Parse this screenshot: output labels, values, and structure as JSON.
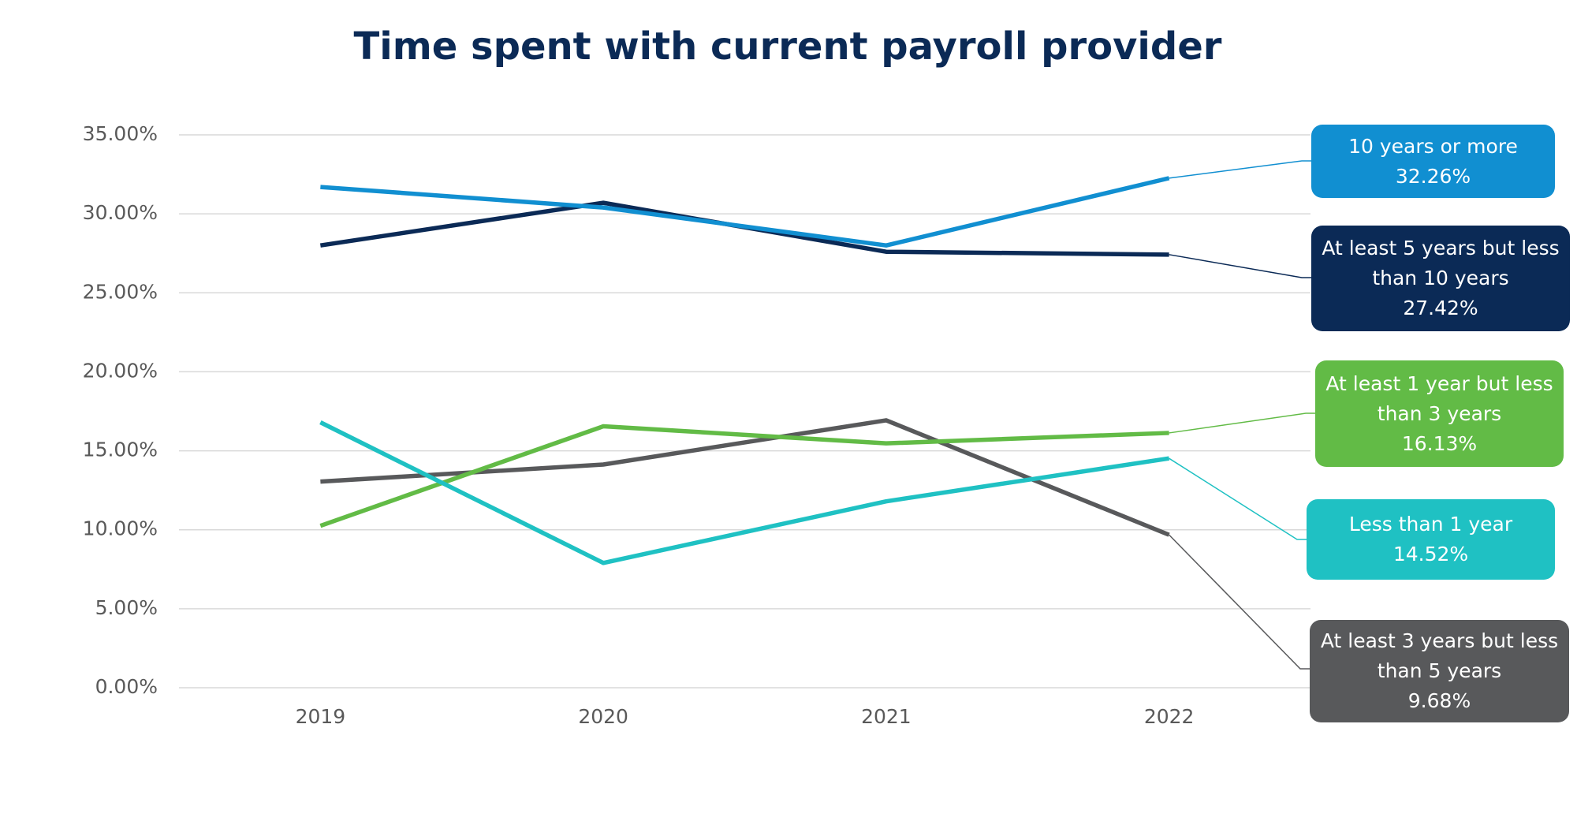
{
  "chart_data": {
    "type": "line",
    "title": "Time spent with current payroll provider",
    "categories": [
      "2019",
      "2020",
      "2021",
      "2022"
    ],
    "ylim": [
      0,
      35
    ],
    "yticks": [
      {
        "value": 0,
        "label": "0.00%"
      },
      {
        "value": 5,
        "label": "5.00%"
      },
      {
        "value": 10,
        "label": "10.00%"
      },
      {
        "value": 15,
        "label": "15.00%"
      },
      {
        "value": 20,
        "label": "20.00%"
      },
      {
        "value": 25,
        "label": "25.00%"
      },
      {
        "value": 30,
        "label": "30.00%"
      },
      {
        "value": 35,
        "label": "35.00%"
      }
    ],
    "grid": true,
    "series": [
      {
        "name": "10 years or more",
        "color": "#118fd1",
        "values": [
          31.7,
          30.4,
          28.0,
          32.26
        ],
        "value_labels": [
          null,
          null,
          null,
          "32.26%"
        ]
      },
      {
        "name": "At least 5 years but less than 10 years",
        "color": "#0b2a56",
        "values": [
          28.0,
          30.7,
          27.6,
          27.42
        ],
        "value_labels": [
          null,
          null,
          null,
          "27.42%"
        ]
      },
      {
        "name": "At least 1 year but less than 3 years",
        "color": "#62bb46",
        "values": [
          10.25,
          16.55,
          15.47,
          16.13
        ],
        "value_labels": [
          null,
          null,
          null,
          "16.13%"
        ]
      },
      {
        "name": "Less than 1 year",
        "color": "#1fc1c3",
        "values": [
          16.8,
          7.9,
          11.8,
          14.52
        ],
        "value_labels": [
          null,
          null,
          null,
          "14.52%"
        ]
      },
      {
        "name": "At least 3 years but less than 5 years",
        "color": "#58595b",
        "values": [
          13.05,
          14.13,
          16.93,
          9.68
        ],
        "value_labels": [
          null,
          null,
          null,
          "9.68%"
        ]
      }
    ]
  }
}
